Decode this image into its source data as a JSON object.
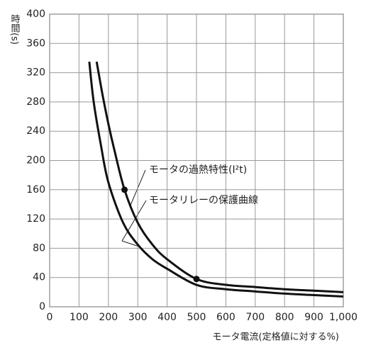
{
  "chart_data": {
    "type": "line",
    "y_label": "時間(s)",
    "x_label": "モータ電流(定格値に対する%)",
    "series": [
      {
        "name": "モータの過熱特性(I²t)",
        "color": "#111111",
        "x": [
          160,
          180,
          200,
          220,
          255,
          300,
          350,
          400,
          500,
          600,
          700,
          800,
          900,
          1000
        ],
        "values": [
          335,
          290,
          250,
          215,
          160,
          115,
          85,
          65,
          38,
          30,
          27,
          24,
          22,
          20
        ]
      },
      {
        "name": "モータリレーの保護曲線",
        "color": "#111111",
        "x": [
          135,
          150,
          175,
          200,
          250,
          300,
          350,
          400,
          500,
          600,
          700,
          800,
          900,
          1000
        ],
        "values": [
          335,
          280,
          220,
          170,
          115,
          85,
          65,
          52,
          30,
          24,
          21,
          18,
          16,
          14
        ]
      }
    ],
    "markers": {
      "x": [
        255,
        500
      ],
      "values": [
        160,
        38
      ]
    },
    "xlim": [
      0,
      1000
    ],
    "ylim": [
      0,
      400
    ],
    "xticks": [
      0,
      100,
      200,
      300,
      400,
      500,
      600,
      700,
      800,
      900,
      {
        "value": 1000,
        "label": "1,000"
      }
    ],
    "yticks": [
      0,
      40,
      80,
      120,
      160,
      200,
      240,
      280,
      320,
      360,
      400
    ],
    "grid": true
  }
}
